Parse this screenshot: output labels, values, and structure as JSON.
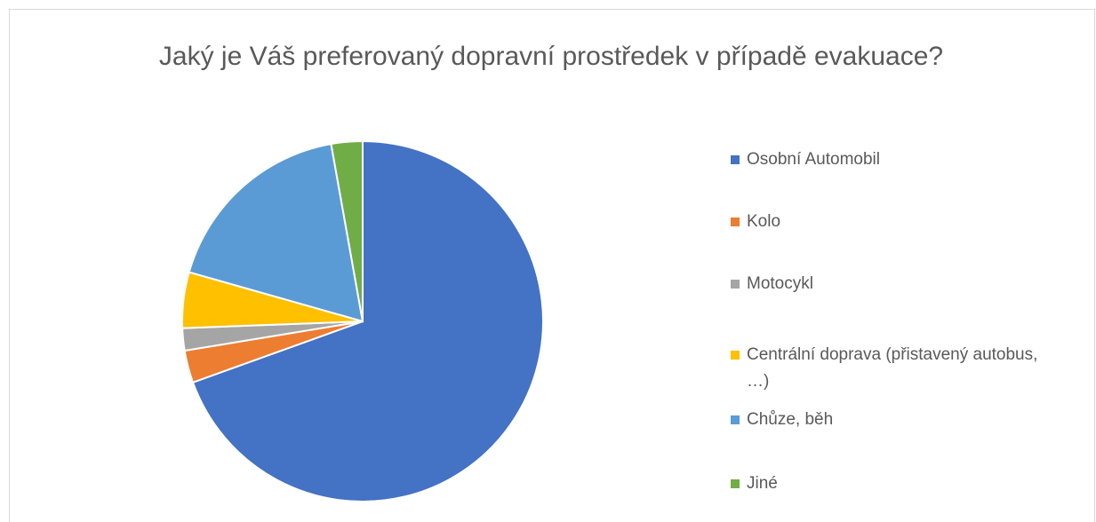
{
  "chart_data": {
    "type": "pie",
    "title": "Jaký je Váš preferovaný dopravní prostředek v případě evakuace?",
    "categories": [
      "Osobní Automobil",
      "Kolo",
      "Motocykl",
      "Centrální doprava (přistavený autobus, …)",
      "Chůze, běh",
      "Jiné"
    ],
    "values": [
      69.5,
      2.9,
      2,
      5,
      17.8,
      2.8
    ],
    "colors": [
      "#4472c4",
      "#ed7d31",
      "#a5a5a5",
      "#ffc000",
      "#5b9bd5",
      "#70ad47"
    ],
    "legend": "right"
  }
}
